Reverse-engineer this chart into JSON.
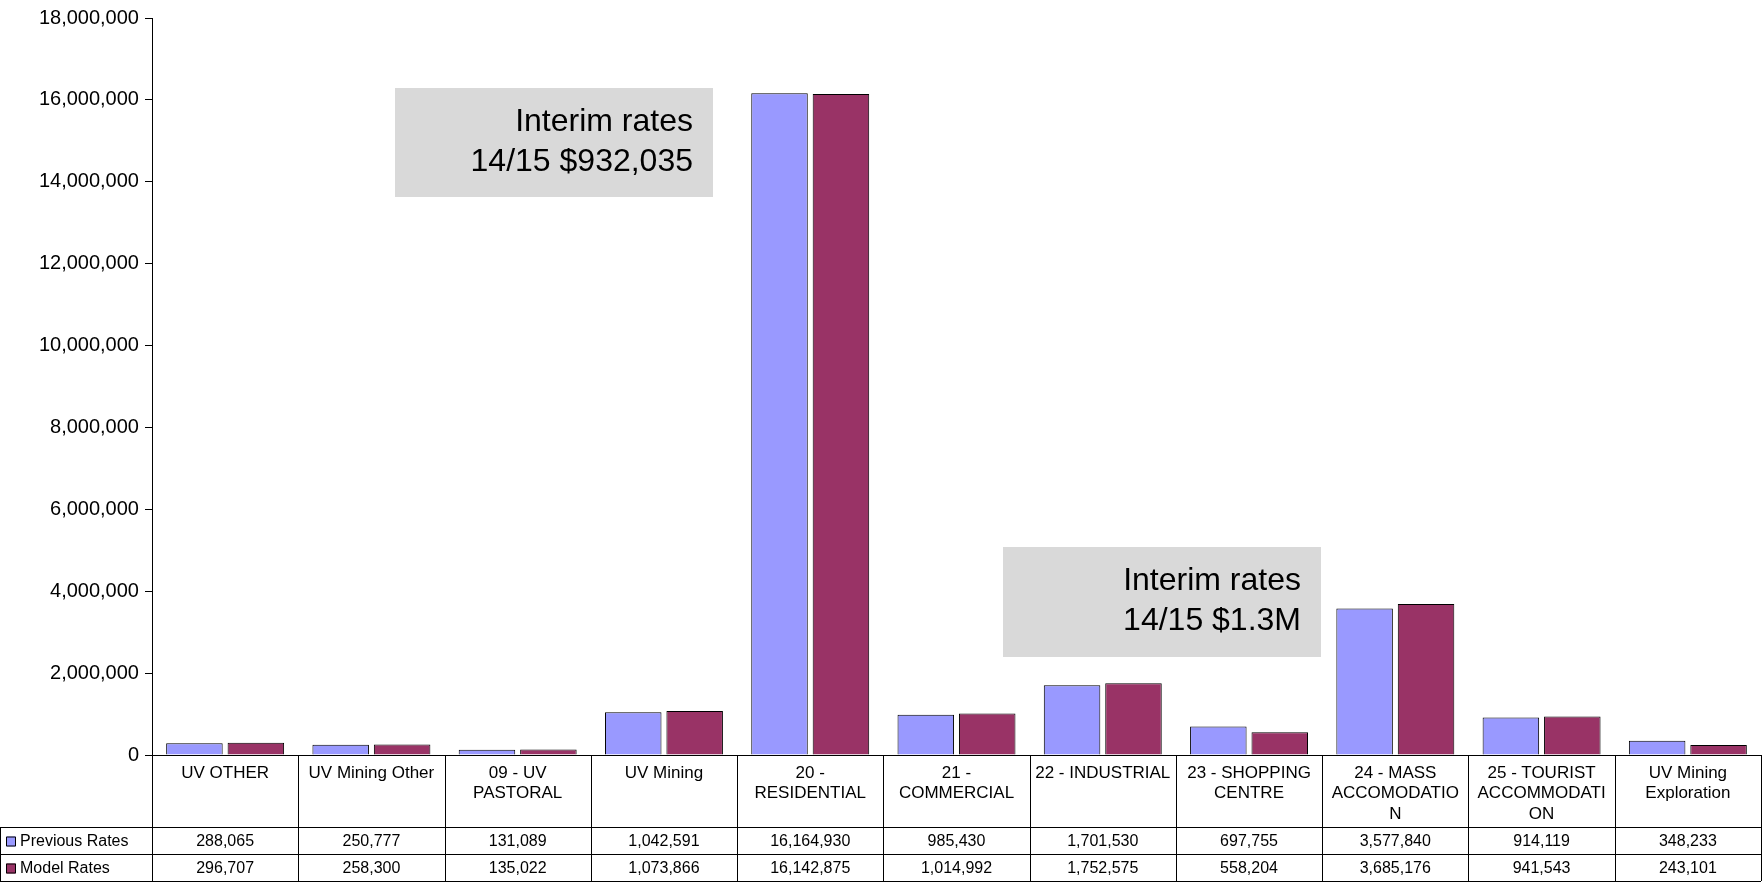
{
  "chart_data": {
    "type": "bar",
    "categories": [
      "UV OTHER",
      "UV Mining Other",
      "09 - UV PASTORAL",
      "UV Mining",
      "20 - RESIDENTIAL",
      "21 - COMMERCIAL",
      "22 - INDUSTRIAL",
      "23 - SHOPPING CENTRE",
      "24 - MASS ACCOMODATION",
      "25 - TOURIST ACCOMMODATION",
      "UV Mining Exploration"
    ],
    "series": [
      {
        "name": "Previous Rates",
        "color": "#9999ff",
        "values": [
          288065,
          250777,
          131089,
          1042591,
          16164930,
          985430,
          1701530,
          697755,
          3577840,
          914119,
          348233
        ],
        "value_labels": [
          "288,065",
          "250,777",
          "131,089",
          "1,042,591",
          "16,164,930",
          "985,430",
          "1,701,530",
          "697,755",
          "3,577,840",
          "914,119",
          "348,233"
        ]
      },
      {
        "name": "Model Rates",
        "color": "#993366",
        "values": [
          296707,
          258300,
          135022,
          1073866,
          16142875,
          1014992,
          1752575,
          558204,
          3685176,
          941543,
          243101
        ],
        "value_labels": [
          "296,707",
          "258,300",
          "135,022",
          "1,073,866",
          "16,142,875",
          "1,014,992",
          "1,752,575",
          "558,204",
          "3,685,176",
          "941,543",
          "243,101"
        ]
      }
    ],
    "ylim": [
      0,
      18000000
    ],
    "yticks": [
      {
        "value": 0,
        "label": "0"
      },
      {
        "value": 2000000,
        "label": "2,000,000"
      },
      {
        "value": 4000000,
        "label": "4,000,000"
      },
      {
        "value": 6000000,
        "label": "6,000,000"
      },
      {
        "value": 8000000,
        "label": "8,000,000"
      },
      {
        "value": 10000000,
        "label": "10,000,000"
      },
      {
        "value": 12000000,
        "label": "12,000,000"
      },
      {
        "value": 14000000,
        "label": "14,000,000"
      },
      {
        "value": 16000000,
        "label": "16,000,000"
      },
      {
        "value": 18000000,
        "label": "18,000,000"
      }
    ],
    "grid": false,
    "legend": "bottom",
    "annotations": [
      "Interim rates 14/15 $932,035",
      "Interim rates 14/15 $1.3M"
    ]
  }
}
